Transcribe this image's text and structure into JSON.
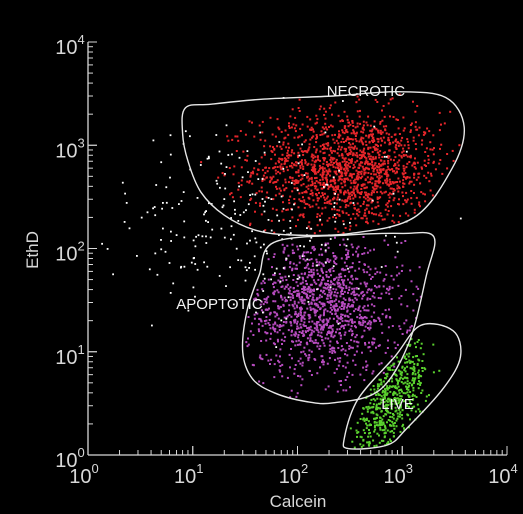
{
  "chart_data": {
    "type": "scatter",
    "title": "",
    "xlabel": "Calcein",
    "ylabel": "EthD",
    "x_scale": "log",
    "y_scale": "log",
    "xlim": [
      1,
      10000
    ],
    "ylim": [
      1,
      10000
    ],
    "x_ticks": [
      {
        "value": 1,
        "base": "10",
        "exp": "0"
      },
      {
        "value": 10,
        "base": "10",
        "exp": "1"
      },
      {
        "value": 100,
        "base": "10",
        "exp": "2"
      },
      {
        "value": 1000,
        "base": "10",
        "exp": "3"
      },
      {
        "value": 10000,
        "base": "10",
        "exp": "4"
      }
    ],
    "y_ticks": [
      {
        "value": 1,
        "base": "10",
        "exp": "0"
      },
      {
        "value": 10,
        "base": "10",
        "exp": "1"
      },
      {
        "value": 100,
        "base": "10",
        "exp": "2"
      },
      {
        "value": 1000,
        "base": "10",
        "exp": "3"
      },
      {
        "value": 10000,
        "base": "10",
        "exp": "4"
      }
    ],
    "grid": false,
    "background_color": "#000000",
    "foreground_color": "#d8d8d8",
    "gates": [
      {
        "label": "NECROTIC",
        "color": "#e8262b",
        "label_pos": [
          450,
          3000
        ],
        "polygon": [
          [
            8.5,
            2300
          ],
          [
            15,
            2500
          ],
          [
            48,
            2800
          ],
          [
            220,
            3000
          ],
          [
            900,
            3300
          ],
          [
            2600,
            2900
          ],
          [
            3900,
            1500
          ],
          [
            3000,
            600
          ],
          [
            1300,
            200
          ],
          [
            320,
            140
          ],
          [
            90,
            135
          ],
          [
            40,
            150
          ],
          [
            20,
            210
          ],
          [
            12,
            350
          ],
          [
            9,
            700
          ],
          [
            8,
            1300
          ]
        ],
        "center": [
          300,
          600
        ],
        "sigma": [
          0.45,
          0.28
        ],
        "count": 1500
      },
      {
        "label": "APOPTOTIC",
        "color": "#b84cc0",
        "label_pos": [
          18,
          26
        ],
        "polygon": [
          [
            60,
            115
          ],
          [
            300,
            135
          ],
          [
            1000,
            140
          ],
          [
            2000,
            130
          ],
          [
            1700,
            55
          ],
          [
            1150,
            12
          ],
          [
            600,
            4.2
          ],
          [
            220,
            3.2
          ],
          [
            120,
            3.3
          ],
          [
            60,
            4
          ],
          [
            37,
            5.5
          ],
          [
            30,
            10
          ],
          [
            33,
            25
          ],
          [
            43,
            55
          ]
        ],
        "center": [
          170,
          28
        ],
        "sigma": [
          0.38,
          0.33
        ],
        "count": 1200
      },
      {
        "label": "LIVE",
        "color": "#5ad12e",
        "label_pos": [
          900,
          2.8
        ],
        "polygon": [
          [
            1500,
            18
          ],
          [
            3050,
            16
          ],
          [
            3600,
            9
          ],
          [
            2500,
            4.5
          ],
          [
            1100,
            1.8
          ],
          [
            720,
            1.25
          ],
          [
            310,
            1.15
          ],
          [
            280,
            1.45
          ],
          [
            380,
            3.5
          ],
          [
            850,
            9
          ]
        ],
        "center": [
          750,
          3.3
        ],
        "sigma": [
          0.18,
          0.22
        ],
        "tilt": 0.9,
        "count": 500
      }
    ],
    "scattered_events": {
      "color": "#ffffff",
      "count": 260
    }
  }
}
